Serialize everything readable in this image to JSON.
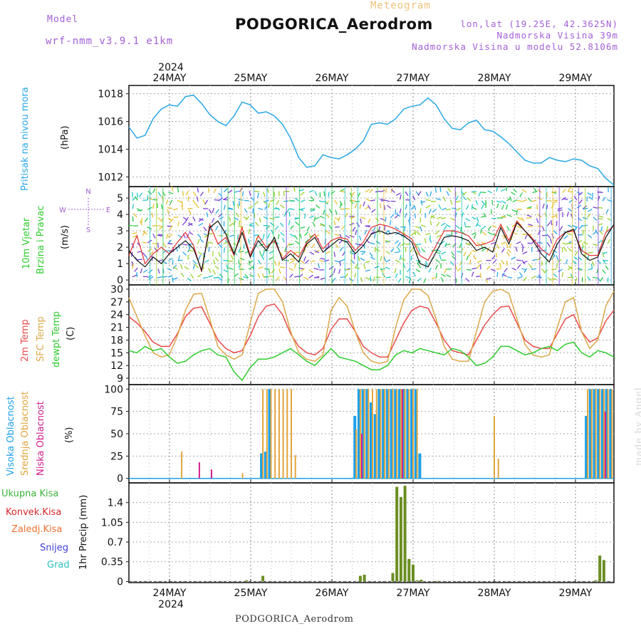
{
  "header": {
    "title": "PODGORICA_Aerodrom",
    "subtitle": "Meteogram",
    "model_label": "Model",
    "model_value": "wrf-nmm_v3.9.1 e1km",
    "lonlat": "lon,lat (19.25E, 42.3625N)",
    "elevation": "Nadmorska Visina 39m",
    "elevation_model": "Nadmorska Visina u modelu 52.8106m",
    "watermark": "made by Angel"
  },
  "time_axis": {
    "year": "2024",
    "days": [
      "24MAY",
      "25MAY",
      "26MAY",
      "27MAY",
      "28MAY",
      "29MAY"
    ]
  },
  "footer": "PODGORICA_Aerodrom",
  "colors": {
    "pressure": "#2aa7e6",
    "temp2m": "#ea4a4a",
    "sfc_temp": "#dca84a",
    "dewpoint": "#2ecc2e",
    "high_cloud": "#1ea0e8",
    "mid_cloud": "#e2a53c",
    "low_cloud": "#d21e8c",
    "precip_total": "#3cb33c",
    "precip_conv": "#d42828",
    "wind_speed": "#111111",
    "wind_gust": "#e63232",
    "precip_bar": "#6b8e23"
  },
  "chart_data": [
    {
      "type": "line",
      "panel": "pressure",
      "ylabel_main": "Pritisak na nivou mora",
      "ylabel_unit": "(hPa)",
      "yticks": [
        1012,
        1014,
        1016,
        1018
      ],
      "ylim": [
        1011.3,
        1018.6
      ],
      "grid": true,
      "x_days": [
        0.0,
        0.1,
        0.2,
        0.3,
        0.4,
        0.5,
        0.6,
        0.7,
        0.8,
        0.9,
        1.0,
        1.1,
        1.2,
        1.3,
        1.4,
        1.5,
        1.6,
        1.7,
        1.8,
        1.9,
        2.0,
        2.1,
        2.2,
        2.3,
        2.4,
        2.5,
        2.6,
        2.7,
        2.8,
        2.9,
        3.0,
        3.1,
        3.2,
        3.3,
        3.4,
        3.5,
        3.6,
        3.7,
        3.8,
        3.9,
        4.0,
        4.1,
        4.2,
        4.3,
        4.4,
        4.5,
        4.6,
        4.7,
        4.8,
        4.9,
        5.0,
        5.1,
        5.2,
        5.3,
        5.4,
        5.5,
        5.6,
        5.7,
        5.8,
        5.9,
        6.0
      ],
      "series": [
        {
          "values": [
            1015.6,
            1014.8,
            1015.0,
            1016.2,
            1016.9,
            1017.2,
            1017.1,
            1017.8,
            1017.9,
            1017.3,
            1016.5,
            1016.0,
            1015.7,
            1016.4,
            1017.4,
            1017.2,
            1016.6,
            1016.7,
            1016.4,
            1015.8,
            1014.8,
            1013.4,
            1012.7,
            1012.8,
            1013.6,
            1013.4,
            1013.3,
            1013.6,
            1014.0,
            1014.6,
            1015.8,
            1015.9,
            1015.8,
            1016.2,
            1016.9,
            1017.1,
            1017.2,
            1017.7,
            1017.2,
            1016.2,
            1015.5,
            1015.4,
            1015.9,
            1016.1,
            1015.4,
            1015.3,
            1014.9,
            1014.4,
            1013.8,
            1013.2,
            1013.0,
            1013.0,
            1013.4,
            1013.2,
            1013.1,
            1013.3,
            1013.2,
            1012.8,
            1012.6,
            1011.9,
            1011.4
          ]
        }
      ]
    },
    {
      "type": "line",
      "panel": "wind",
      "ylabel_main1": "10m Vjetar",
      "ylabel_main2": "Brzina i Pravac",
      "ylabel_unit": "(m/s)",
      "compass": "N / W E / S",
      "yticks": [
        0,
        1,
        2,
        3,
        4,
        5
      ],
      "ylim": [
        -0.3,
        5.7
      ],
      "grid": true,
      "x_days": [
        0.0,
        0.1,
        0.2,
        0.3,
        0.4,
        0.5,
        0.6,
        0.7,
        0.8,
        0.9,
        1.0,
        1.1,
        1.2,
        1.3,
        1.4,
        1.5,
        1.6,
        1.7,
        1.8,
        1.9,
        2.0,
        2.1,
        2.2,
        2.3,
        2.4,
        2.5,
        2.6,
        2.7,
        2.8,
        2.9,
        3.0,
        3.1,
        3.2,
        3.3,
        3.4,
        3.5,
        3.6,
        3.7,
        3.8,
        3.9,
        4.0,
        4.1,
        4.2,
        4.3,
        4.4,
        4.5,
        4.6,
        4.7,
        4.8,
        4.9,
        5.0,
        5.1,
        5.2,
        5.3,
        5.4,
        5.5,
        5.6,
        5.7,
        5.8,
        5.9,
        6.0
      ],
      "series": [
        {
          "name": "speed",
          "values": [
            1.8,
            1.2,
            0.8,
            1.4,
            1.0,
            1.6,
            2.0,
            2.4,
            1.9,
            0.6,
            3.2,
            3.6,
            2.8,
            1.6,
            2.9,
            1.4,
            2.4,
            1.8,
            2.6,
            1.2,
            1.6,
            1.1,
            2.2,
            2.6,
            1.7,
            2.1,
            2.5,
            2.3,
            1.6,
            2.1,
            2.8,
            3.0,
            2.8,
            2.9,
            2.7,
            2.3,
            1.0,
            0.8,
            1.7,
            2.6,
            2.7,
            2.6,
            2.4,
            1.8,
            2.0,
            1.7,
            3.2,
            2.2,
            3.5,
            3.0,
            2.4,
            1.6,
            1.1,
            2.2,
            2.9,
            3.1,
            1.6,
            1.2,
            1.4,
            2.6,
            3.4
          ]
        },
        {
          "name": "gust",
          "values": [
            1.5,
            2.7,
            1.0,
            1.6,
            2.0,
            1.6,
            2.3,
            2.9,
            2.1,
            0.5,
            3.4,
            2.2,
            2.6,
            1.5,
            3.2,
            1.5,
            2.7,
            2.0,
            2.4,
            1.3,
            1.8,
            1.4,
            2.3,
            2.8,
            1.9,
            2.4,
            2.6,
            2.5,
            1.8,
            2.3,
            3.2,
            3.4,
            3.3,
            3.1,
            2.8,
            2.5,
            1.5,
            1.2,
            2.1,
            3.0,
            3.0,
            2.9,
            2.7,
            2.1,
            2.2,
            2.4,
            3.4,
            2.4,
            3.6,
            3.0,
            2.5,
            1.9,
            1.5,
            2.5,
            2.9,
            3.0,
            1.8,
            1.5,
            1.5,
            2.9,
            3.3
          ]
        }
      ]
    },
    {
      "type": "line",
      "panel": "temperature",
      "ylabel_a": "2m Temp",
      "ylabel_b": "SFC Temp",
      "ylabel_c": "dewpt Temp",
      "ylabel_unit": "(C)",
      "yticks": [
        9,
        12,
        15,
        18,
        21,
        24,
        27,
        30
      ],
      "ylim": [
        7.5,
        31.0
      ],
      "grid": true,
      "x_days": [
        0.0,
        0.1,
        0.2,
        0.3,
        0.4,
        0.5,
        0.6,
        0.7,
        0.8,
        0.9,
        1.0,
        1.1,
        1.2,
        1.3,
        1.4,
        1.5,
        1.6,
        1.7,
        1.8,
        1.9,
        2.0,
        2.1,
        2.2,
        2.3,
        2.4,
        2.5,
        2.6,
        2.7,
        2.8,
        2.9,
        3.0,
        3.1,
        3.2,
        3.3,
        3.4,
        3.5,
        3.6,
        3.7,
        3.8,
        3.9,
        4.0,
        4.1,
        4.2,
        4.3,
        4.4,
        4.5,
        4.6,
        4.7,
        4.8,
        4.9,
        5.0,
        5.1,
        5.2,
        5.3,
        5.4,
        5.5,
        5.6,
        5.7,
        5.8,
        5.9,
        6.0
      ],
      "series": [
        {
          "name": "2m Temp",
          "values": [
            23.5,
            22.0,
            20.0,
            17.5,
            16.5,
            16.5,
            19.5,
            23.5,
            25.5,
            25.8,
            22.0,
            18.0,
            16.0,
            15.0,
            15.5,
            19.0,
            23.5,
            26.0,
            26.5,
            24.0,
            19.5,
            16.5,
            15.0,
            14.5,
            16.0,
            20.5,
            23.0,
            23.0,
            20.0,
            16.5,
            15.0,
            14.0,
            14.0,
            18.0,
            22.0,
            25.0,
            26.0,
            25.5,
            22.0,
            18.0,
            15.5,
            15.0,
            14.5,
            18.0,
            21.5,
            24.0,
            25.8,
            26.0,
            22.0,
            18.0,
            16.5,
            16.0,
            16.0,
            19.5,
            23.0,
            24.0,
            20.0,
            17.5,
            18.5,
            22.5,
            25.0
          ]
        },
        {
          "name": "SFC Temp",
          "values": [
            28.0,
            23.5,
            19.0,
            15.0,
            14.0,
            14.5,
            19.0,
            25.0,
            28.8,
            29.0,
            23.0,
            16.5,
            14.5,
            13.5,
            14.5,
            22.0,
            29.0,
            30.0,
            30.0,
            27.0,
            20.0,
            15.0,
            13.5,
            13.0,
            14.5,
            25.0,
            28.0,
            26.0,
            20.0,
            15.0,
            13.0,
            12.5,
            13.0,
            21.0,
            27.5,
            30.0,
            30.0,
            28.5,
            23.0,
            16.5,
            13.5,
            13.0,
            13.0,
            20.0,
            27.0,
            29.5,
            30.0,
            29.0,
            23.0,
            17.0,
            14.5,
            14.0,
            14.5,
            21.0,
            27.0,
            28.0,
            20.0,
            16.0,
            18.0,
            26.0,
            29.5
          ]
        },
        {
          "name": "dewpt Temp",
          "values": [
            15.5,
            15.0,
            16.5,
            15.5,
            16.0,
            14.0,
            12.5,
            13.0,
            14.5,
            15.5,
            16.0,
            14.5,
            14.0,
            10.5,
            8.5,
            11.5,
            13.5,
            13.5,
            14.0,
            15.0,
            16.0,
            14.5,
            13.0,
            12.0,
            14.0,
            16.0,
            14.0,
            13.5,
            13.0,
            12.0,
            11.0,
            11.0,
            12.0,
            14.5,
            15.5,
            15.0,
            16.0,
            15.5,
            15.0,
            14.5,
            16.0,
            15.5,
            14.0,
            12.0,
            12.5,
            14.0,
            16.5,
            16.5,
            15.5,
            14.5,
            15.0,
            16.0,
            16.5,
            15.5,
            17.0,
            17.5,
            15.0,
            14.0,
            15.5,
            15.0,
            14.0
          ]
        }
      ]
    },
    {
      "type": "bar",
      "panel": "cloud",
      "ylabel_a": "Visoka Oblacnost",
      "ylabel_b": "Srednja Oblacnost",
      "ylabel_c": "Niska Oblacnost",
      "ylabel_unit": "(%)",
      "yticks": [
        0,
        25,
        50,
        75,
        100
      ],
      "ylim": [
        -5,
        105
      ],
      "grid": true,
      "series": [
        {
          "name": "Visoka Oblacnost",
          "x_days": [
            1.15,
            1.2,
            1.25,
            2.3,
            2.35,
            2.4,
            2.45,
            2.5,
            2.55,
            2.6,
            2.65,
            2.7,
            2.75,
            2.8,
            2.85,
            2.9,
            2.95,
            3.0,
            3.05,
            3.1,
            5.15,
            5.2,
            5.25,
            5.3,
            5.35,
            5.4,
            5.45,
            5.5,
            5.55,
            5.6,
            5.65,
            5.7,
            5.75,
            5.8,
            5.85,
            5.9,
            5.95,
            6.0
          ],
          "values": [
            28,
            30,
            100,
            70,
            100,
            100,
            100,
            85,
            72,
            100,
            100,
            100,
            100,
            100,
            100,
            100,
            100,
            100,
            100,
            28,
            70,
            100,
            100,
            100,
            100,
            100,
            100,
            100,
            100,
            100,
            100,
            100,
            100,
            100,
            100,
            100,
            100,
            100
          ]
        },
        {
          "name": "Srednja Oblacnost",
          "x_days": [
            0.15,
            0.9,
            1.15,
            1.2,
            1.25,
            1.3,
            1.35,
            1.4,
            1.45,
            1.5,
            1.55,
            2.3,
            2.35,
            2.4,
            2.45,
            2.5,
            2.55,
            2.6,
            2.65,
            2.7,
            2.75,
            2.8,
            2.85,
            2.9,
            2.95,
            3.0,
            3.05,
            4.0,
            4.05,
            5.15,
            5.2,
            5.25,
            5.3,
            5.35,
            5.4,
            5.45,
            5.5,
            5.55,
            5.6,
            5.65,
            5.7,
            5.75,
            5.8,
            5.85,
            5.9,
            5.95,
            6.0
          ],
          "values": [
            30,
            6,
            100,
            100,
            100,
            100,
            100,
            100,
            100,
            100,
            26,
            55,
            100,
            100,
            100,
            100,
            100,
            100,
            100,
            100,
            100,
            100,
            100,
            100,
            100,
            100,
            100,
            70,
            22,
            100,
            100,
            100,
            100,
            100,
            100,
            100,
            100,
            26,
            100,
            100,
            100,
            100,
            100,
            100,
            100,
            100,
            100
          ]
        },
        {
          "name": "Niska Oblacnost",
          "x_days": [
            0.35,
            0.5,
            2.35,
            2.85,
            5.35,
            5.7
          ],
          "values": [
            18,
            10,
            50,
            100,
            75,
            6
          ]
        }
      ]
    },
    {
      "type": "bar",
      "panel": "precip",
      "legend": [
        "Ukupna Kisa",
        "Konvek.Kisa",
        "Zaledj.Kisa",
        "Snijeg",
        "Grad"
      ],
      "ylabel_unit": "1hr Precip (mm)",
      "yticks": [
        0,
        0.35,
        0.7,
        1.05,
        1.4
      ],
      "ylim": [
        -0.02,
        1.75
      ],
      "grid": true,
      "series": [
        {
          "name": "Ukupna Kisa",
          "x_days": [
            0.95,
            1.15,
            2.35,
            2.4,
            2.75,
            2.8,
            2.85,
            2.9,
            2.95,
            3.0,
            3.05,
            3.1,
            3.3,
            5.25,
            5.3,
            5.35,
            5.55,
            5.7,
            5.75,
            5.8,
            5.85,
            5.9
          ],
          "values": [
            0.02,
            0.1,
            0.1,
            0.12,
            0.15,
            1.68,
            1.5,
            1.7,
            0.4,
            0.3,
            0.02,
            0.03,
            0.01,
            0.02,
            0.46,
            0.38,
            0.02,
            0.1,
            0.2,
            0.3,
            0.45,
            0.09
          ]
        }
      ]
    }
  ]
}
